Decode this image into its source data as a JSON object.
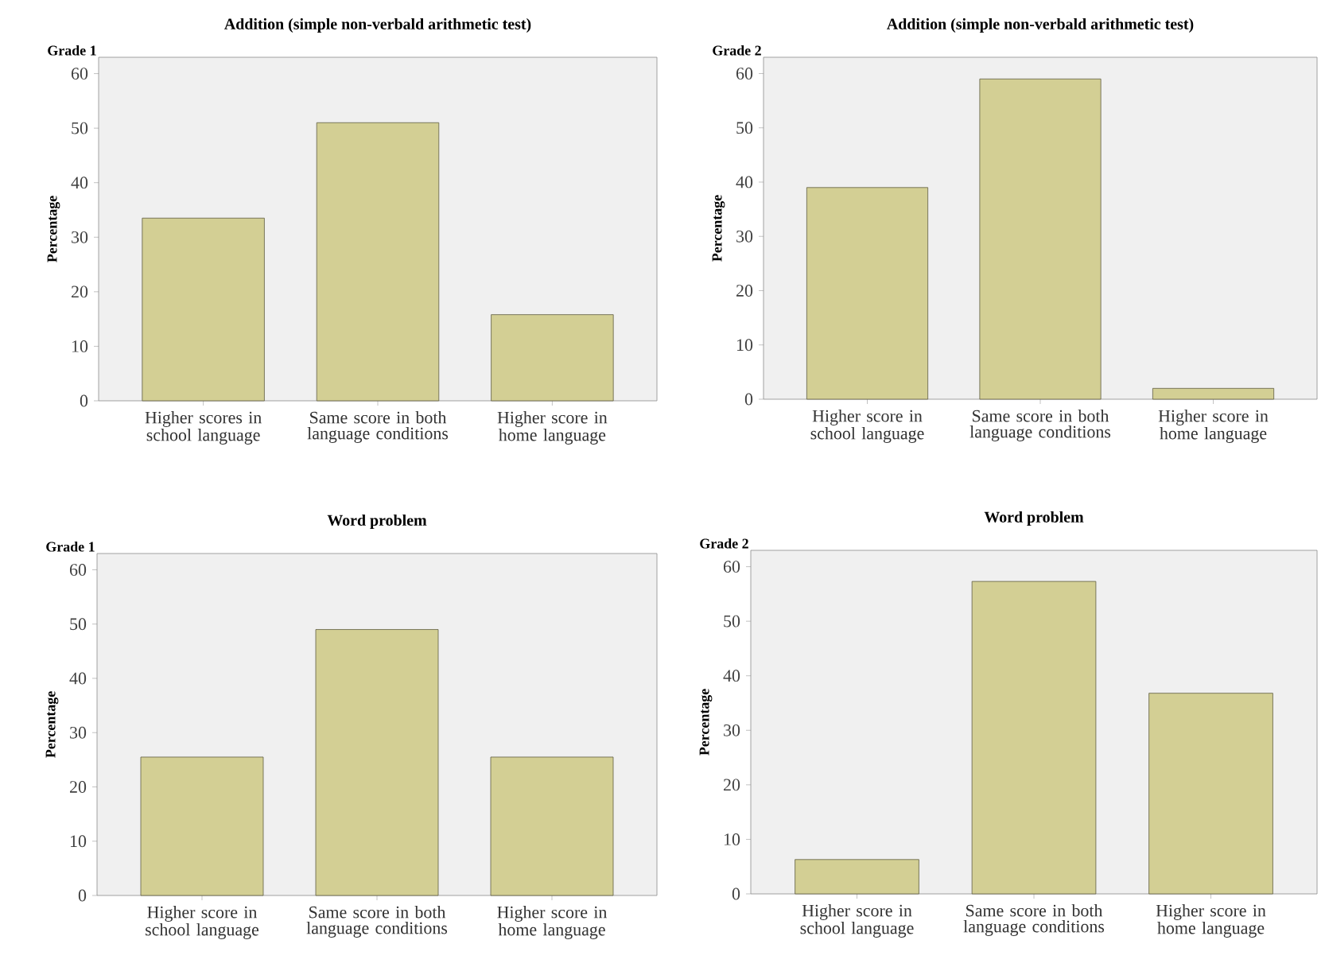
{
  "chart_data": [
    {
      "type": "bar",
      "title": "Addition (simple non-verbald arithmetic test)",
      "subtitle": "Grade 1",
      "ylabel": "Percentage",
      "categories": [
        "Higher scores in school language",
        "Same score in both language conditions",
        "Higher score in home language"
      ],
      "values": [
        33.5,
        51,
        15.8
      ],
      "color": "#d3cf94",
      "ylim": [
        0,
        63
      ],
      "yticks": [
        0,
        10,
        20,
        30,
        40,
        50,
        60
      ]
    },
    {
      "type": "bar",
      "title": "Addition (simple non-verbald arithmetic test)",
      "subtitle": "Grade 2",
      "ylabel": "Percentage",
      "categories": [
        "Higher score in school language",
        "Same score in both language conditions",
        "Higher score in home language"
      ],
      "values": [
        39,
        59,
        2
      ],
      "color": "#d3cf94",
      "ylim": [
        0,
        63
      ],
      "yticks": [
        0,
        10,
        20,
        30,
        40,
        50,
        60
      ]
    },
    {
      "type": "bar",
      "title": "Word problem",
      "subtitle": "Grade 1",
      "ylabel": "Percentage",
      "categories": [
        "Higher score in school language",
        "Same score in both language conditions",
        "Higher score in home language"
      ],
      "values": [
        25.5,
        49,
        25.5
      ],
      "color": "#d3cf94",
      "ylim": [
        0,
        63
      ],
      "yticks": [
        0,
        10,
        20,
        30,
        40,
        50,
        60
      ]
    },
    {
      "type": "bar",
      "title": "Word problem",
      "subtitle": "Grade 2",
      "ylabel": "Percentage",
      "categories": [
        "Higher score in school language",
        "Same score in both language conditions",
        "Higher score in home language"
      ],
      "values": [
        6.3,
        57.3,
        36.8
      ],
      "color": "#d3cf94",
      "ylim": [
        0,
        63
      ],
      "yticks": [
        0,
        10,
        20,
        30,
        40,
        50,
        60
      ]
    }
  ]
}
